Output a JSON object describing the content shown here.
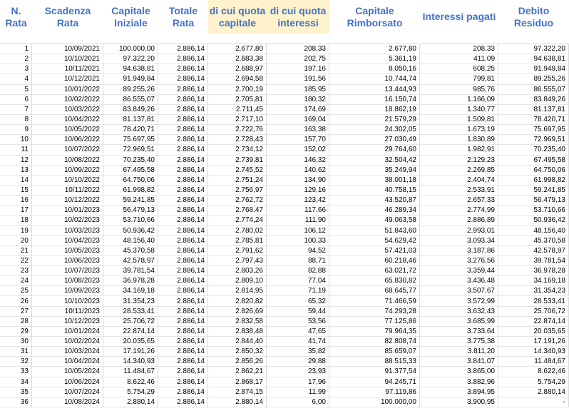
{
  "header": {
    "n_rata": "N.\nRata",
    "scadenza": "Scadenza\nRata",
    "capitale_iniziale": "Capitale\nIniziale",
    "totale_rata": "Totale\nRata",
    "quota_capitale": "di cui quota\ncapitale",
    "quota_interessi": "di cui quota\ninteressi",
    "capitale_rimborsato": "Capitale\nRimborsato",
    "interessi_pagati": "Interessi pagati",
    "debito_residuo": "Debito\nResiduo"
  },
  "highlight_color": "#fff2cc",
  "header_color": "#4472c4",
  "rows": [
    [
      "1",
      "10/09/2021",
      "100.000,00",
      "2.886,14",
      "2.677,80",
      "208,33",
      "2.677,80",
      "208,33",
      "97.322,20"
    ],
    [
      "2",
      "10/10/2021",
      "97.322,20",
      "2.886,14",
      "2.683,38",
      "202,75",
      "5.361,19",
      "411,09",
      "94.638,81"
    ],
    [
      "3",
      "10/11/2021",
      "94.638,81",
      "2.886,14",
      "2.688,97",
      "197,16",
      "8.050,16",
      "608,25",
      "91.949,84"
    ],
    [
      "4",
      "10/12/2021",
      "91.949,84",
      "2.886,14",
      "2.694,58",
      "191,56",
      "10.744,74",
      "799,81",
      "89.255,26"
    ],
    [
      "5",
      "10/01/2022",
      "89.255,26",
      "2.886,14",
      "2.700,19",
      "185,95",
      "13.444,93",
      "985,76",
      "86.555,07"
    ],
    [
      "6",
      "10/02/2022",
      "86.555,07",
      "2.886,14",
      "2.705,81",
      "180,32",
      "16.150,74",
      "1.166,09",
      "83.849,26"
    ],
    [
      "7",
      "10/03/2022",
      "83.849,26",
      "2.886,14",
      "2.711,45",
      "174,69",
      "18.862,19",
      "1.340,77",
      "81.137,81"
    ],
    [
      "8",
      "10/04/2022",
      "81.137,81",
      "2.886,14",
      "2.717,10",
      "169,04",
      "21.579,29",
      "1.509,81",
      "78.420,71"
    ],
    [
      "9",
      "10/05/2022",
      "78.420,71",
      "2.886,14",
      "2.722,76",
      "163,38",
      "24.302,05",
      "1.673,19",
      "75.697,95"
    ],
    [
      "10",
      "10/06/2022",
      "75.697,95",
      "2.886,14",
      "2.728,43",
      "157,70",
      "27.030,49",
      "1.830,89",
      "72.969,51"
    ],
    [
      "11",
      "10/07/2022",
      "72.969,51",
      "2.886,14",
      "2.734,12",
      "152,02",
      "29.764,60",
      "1.982,91",
      "70.235,40"
    ],
    [
      "12",
      "10/08/2022",
      "70.235,40",
      "2.886,14",
      "2.739,81",
      "146,32",
      "32.504,42",
      "2.129,23",
      "67.495,58"
    ],
    [
      "13",
      "10/09/2022",
      "67.495,58",
      "2.886,14",
      "2.745,52",
      "140,62",
      "35.249,94",
      "2.269,85",
      "64.750,06"
    ],
    [
      "14",
      "10/10/2022",
      "64.750,06",
      "2.886,14",
      "2.751,24",
      "134,90",
      "38.001,18",
      "2.404,74",
      "61.998,82"
    ],
    [
      "15",
      "10/11/2022",
      "61.998,82",
      "2.886,14",
      "2.756,97",
      "129,16",
      "40.758,15",
      "2.533,91",
      "59.241,85"
    ],
    [
      "16",
      "10/12/2022",
      "59.241,85",
      "2.886,14",
      "2.762,72",
      "123,42",
      "43.520,87",
      "2.657,33",
      "56.479,13"
    ],
    [
      "17",
      "10/01/2023",
      "56.479,13",
      "2.886,14",
      "2.768,47",
      "117,66",
      "46.289,34",
      "2.774,99",
      "53.710,66"
    ],
    [
      "18",
      "10/02/2023",
      "53.710,66",
      "2.886,14",
      "2.774,24",
      "111,90",
      "49.063,58",
      "2.886,89",
      "50.936,42"
    ],
    [
      "19",
      "10/03/2023",
      "50.936,42",
      "2.886,14",
      "2.780,02",
      "106,12",
      "51.843,60",
      "2.993,01",
      "48.156,40"
    ],
    [
      "20",
      "10/04/2023",
      "48.156,40",
      "2.886,14",
      "2.785,81",
      "100,33",
      "54.629,42",
      "3.093,34",
      "45.370,58"
    ],
    [
      "21",
      "10/05/2023",
      "45.370,58",
      "2.886,14",
      "2.791,62",
      "94,52",
      "57.421,03",
      "3.187,86",
      "42.578,97"
    ],
    [
      "22",
      "10/06/2023",
      "42.578,97",
      "2.886,14",
      "2.797,43",
      "88,71",
      "60.218,46",
      "3.276,56",
      "39.781,54"
    ],
    [
      "23",
      "10/07/2023",
      "39.781,54",
      "2.886,14",
      "2.803,26",
      "82,88",
      "63.021,72",
      "3.359,44",
      "36.978,28"
    ],
    [
      "24",
      "10/08/2023",
      "36.978,28",
      "2.886,14",
      "2.809,10",
      "77,04",
      "65.830,82",
      "3.436,48",
      "34.169,18"
    ],
    [
      "25",
      "10/09/2023",
      "34.169,18",
      "2.886,14",
      "2.814,95",
      "71,19",
      "68.645,77",
      "3.507,67",
      "31.354,23"
    ],
    [
      "26",
      "10/10/2023",
      "31.354,23",
      "2.886,14",
      "2.820,82",
      "65,32",
      "71.466,59",
      "3.572,99",
      "28.533,41"
    ],
    [
      "27",
      "10/11/2023",
      "28.533,41",
      "2.886,14",
      "2.826,69",
      "59,44",
      "74.293,28",
      "3.632,43",
      "25.706,72"
    ],
    [
      "28",
      "10/12/2023",
      "25.706,72",
      "2.886,14",
      "2.832,58",
      "53,56",
      "77.125,86",
      "3.685,99",
      "22.874,14"
    ],
    [
      "29",
      "10/01/2024",
      "22.874,14",
      "2.886,14",
      "2.838,48",
      "47,65",
      "79.964,35",
      "3.733,64",
      "20.035,65"
    ],
    [
      "30",
      "10/02/2024",
      "20.035,65",
      "2.886,14",
      "2.844,40",
      "41,74",
      "82.808,74",
      "3.775,38",
      "17.191,26"
    ],
    [
      "31",
      "10/03/2024",
      "17.191,26",
      "2.886,14",
      "2.850,32",
      "35,82",
      "85.659,07",
      "3.811,20",
      "14.340,93"
    ],
    [
      "32",
      "10/04/2024",
      "14.340,93",
      "2.886,14",
      "2.856,26",
      "29,88",
      "88.515,33",
      "3.841,07",
      "11.484,67"
    ],
    [
      "33",
      "10/05/2024",
      "11.484,67",
      "2.886,14",
      "2.862,21",
      "23,93",
      "91.377,54",
      "3.865,00",
      "8.622,46"
    ],
    [
      "34",
      "10/06/2024",
      "8.622,46",
      "2.886,14",
      "2.868,17",
      "17,96",
      "94.245,71",
      "3.882,96",
      "5.754,29"
    ],
    [
      "35",
      "10/07/2024",
      "5.754,29",
      "2.886,14",
      "2.874,15",
      "11,99",
      "97.119,86",
      "3.894,95",
      "2.880,14"
    ],
    [
      "36",
      "10/08/2024",
      "2.880,14",
      "2.886,14",
      "2.880,14",
      "6,00",
      "100.000,00",
      "3.900,95",
      "-"
    ]
  ]
}
